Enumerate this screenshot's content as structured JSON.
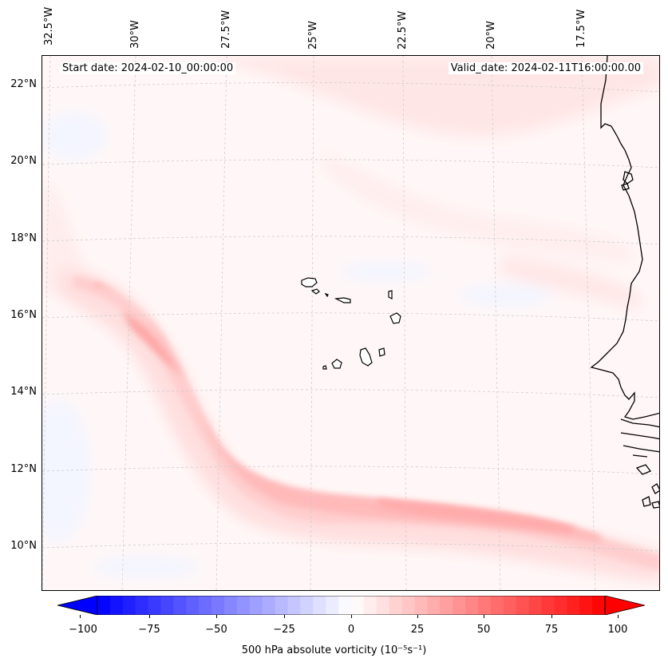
{
  "map": {
    "lon_labels": [
      "32.5°W",
      "30°W",
      "27.5°W",
      "25°W",
      "22.5°W",
      "20°W",
      "17.5°W"
    ],
    "lat_labels": [
      "22°N",
      "20°N",
      "18°N",
      "16°N",
      "14°N",
      "12°N",
      "10°N"
    ],
    "start_date": "Start date: 2024-02-10_00:00:00",
    "valid_date": "Valid_date: 2024-02-11T16:00:00.00",
    "features": {
      "vorticity_band": "positive vorticity band",
      "islands": "Cape Verde islands",
      "coast": "West African coastline"
    }
  },
  "colorbar": {
    "ticks": [
      "−100",
      "−75",
      "−50",
      "−25",
      "0",
      "25",
      "50",
      "75",
      "100"
    ],
    "label": "500 hPa absolute vorticity (10⁻⁵s⁻¹)",
    "min": -100,
    "max": 100,
    "colors": {
      "negative": "#0000ff",
      "neutral": "#ffffff",
      "positive": "#ff0000"
    }
  }
}
